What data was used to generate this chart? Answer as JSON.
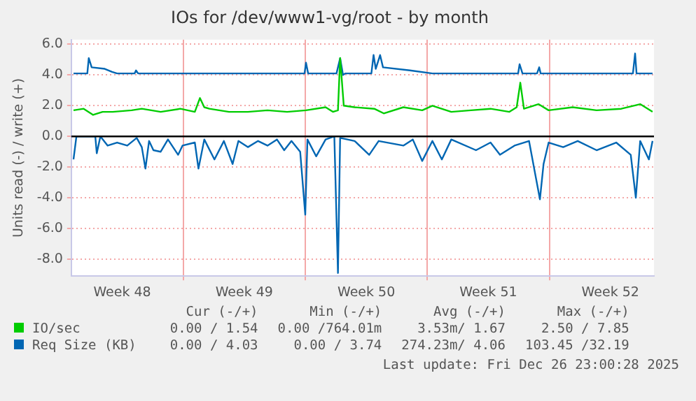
{
  "chart_data": {
    "type": "line",
    "title": "IOs for /dev/www1-vg/root - by month",
    "ylabel": "Units read (-) / write (+)",
    "xlim": [
      "2025-11-23T14:00",
      "2025-12-27T00:00"
    ],
    "xticks": [
      {
        "value": "2025-11-26T12:00",
        "label": "Week 48"
      },
      {
        "value": "2025-11-30",
        "label": null
      },
      {
        "value": "2025-12-03T12:00",
        "label": "Week 49"
      },
      {
        "value": "2025-12-07",
        "label": null
      },
      {
        "value": "2025-12-10T12:00",
        "label": "Week 50"
      },
      {
        "value": "2025-12-14",
        "label": null
      },
      {
        "value": "2025-12-17T12:00",
        "label": "Week 51"
      },
      {
        "value": "2025-12-21",
        "label": null
      },
      {
        "value": "2025-12-24T12:00",
        "label": "Week 52"
      }
    ],
    "ylim": [
      -9.1,
      6.3
    ],
    "yticks": [
      {
        "value": -8,
        "label": "-8.0"
      },
      {
        "value": -6,
        "label": "-6.0"
      },
      {
        "value": -4,
        "label": "-4.0"
      },
      {
        "value": -2,
        "label": "-2.0"
      },
      {
        "value": 0,
        "label": "0.0"
      },
      {
        "value": 2,
        "label": "2.0"
      },
      {
        "value": 4,
        "label": "4.0"
      },
      {
        "value": 6,
        "label": "6.0"
      }
    ],
    "grid": true,
    "legend": "bottom left",
    "marker": "none",
    "line_style": "solid",
    "ref_lines": [
      {
        "axis": "y",
        "value": 0,
        "label": null,
        "color": "#000000"
      }
    ],
    "series": [
      {
        "name": "IO/sec",
        "color": "#00cc00",
        "x": [
          "2025-11-23T17:00",
          "2025-11-24T07:00",
          "2025-11-24T20:00",
          "2025-11-25T09:00",
          "2025-11-25T23:00",
          "2025-11-27T01:00",
          "2025-11-27T15:00",
          "2025-11-28T17:00",
          "2025-11-29T20:00",
          "2025-11-30T16:00",
          "2025-11-30T23:00",
          "2025-12-01T05:00",
          "2025-12-01T12:00",
          "2025-12-02T15:00",
          "2025-12-03T17:00",
          "2025-12-04T20:00",
          "2025-12-05T23:00",
          "2025-12-07T01:00",
          "2025-12-08T04:00",
          "2025-12-08T14:00",
          "2025-12-08T21:00",
          "2025-12-09T00:00",
          "2025-12-09T05:00",
          "2025-12-09T20:00",
          "2025-12-10T23:00",
          "2025-12-11T12:00",
          "2025-12-12T15:00",
          "2025-12-13T17:00",
          "2025-12-14T07:00",
          "2025-12-15T09:00",
          "2025-12-16T12:00",
          "2025-12-17T15:00",
          "2025-12-18T17:00",
          "2025-12-19T03:00",
          "2025-12-19T08:00",
          "2025-12-19T13:00",
          "2025-12-20T09:00",
          "2025-12-20T23:00",
          "2025-12-22T08:00",
          "2025-12-23T17:00",
          "2025-12-25T03:00",
          "2025-12-26T05:00",
          "2025-12-26T22:00"
        ],
        "values": [
          1.7,
          1.8,
          1.4,
          1.6,
          1.6,
          1.7,
          1.8,
          1.6,
          1.8,
          1.6,
          2.5,
          1.9,
          1.8,
          1.6,
          1.6,
          1.7,
          1.6,
          1.7,
          1.9,
          1.6,
          1.7,
          5.1,
          2.0,
          1.9,
          1.8,
          1.5,
          1.9,
          1.7,
          2.0,
          1.6,
          1.7,
          1.8,
          1.6,
          1.9,
          3.5,
          1.8,
          2.1,
          1.7,
          1.9,
          1.7,
          1.8,
          2.1,
          1.6
        ]
      },
      {
        "name": "Req Size (KB)",
        "color": "#0066b3",
        "x": [
          "2025-11-23T17:00",
          "2025-11-24T12:00",
          "2025-11-24T14:00",
          "2025-11-24T18:00",
          "2025-11-25T12:00",
          "2025-11-25T22:00",
          "2025-11-26T05:00",
          "2025-11-27T05:00",
          "2025-11-27T07:00",
          "2025-11-27T10:00",
          "2025-12-06T23:00",
          "2025-12-07T01:00",
          "2025-12-07T04:00",
          "2025-12-08T19:00",
          "2025-12-09T00:00",
          "2025-12-09T04:00",
          "2025-12-09T07:00",
          "2025-12-10T19:00",
          "2025-12-10T22:00",
          "2025-12-11T01:00",
          "2025-12-11T07:00",
          "2025-12-11T11:00",
          "2025-12-13T00:00",
          "2025-12-14T07:00",
          "2025-12-19T05:00",
          "2025-12-19T07:00",
          "2025-12-19T11:00",
          "2025-12-20T07:00",
          "2025-12-20T10:00",
          "2025-12-20T12:00",
          "2025-12-25T19:00",
          "2025-12-25T22:00",
          "2025-12-26T00:00",
          "2025-12-26T22:00"
        ],
        "values": [
          4.1,
          4.1,
          5.1,
          4.5,
          4.4,
          4.2,
          4.1,
          4.1,
          4.3,
          4.1,
          4.1,
          4.8,
          4.1,
          4.1,
          5.1,
          4.0,
          4.1,
          4.1,
          5.3,
          4.4,
          5.3,
          4.5,
          4.3,
          4.1,
          4.1,
          4.7,
          4.1,
          4.1,
          4.5,
          4.1,
          4.1,
          5.4,
          4.1,
          4.1
        ]
      },
      {
        "color": "#0066b3",
        "x": [
          "2025-11-23T17:00",
          "2025-11-23T21:00",
          "2025-11-24T23:00",
          "2025-11-25T01:00",
          "2025-11-25T06:00",
          "2025-11-25T16:00",
          "2025-11-26T05:00",
          "2025-11-26T19:00",
          "2025-11-27T08:00",
          "2025-11-27T15:00",
          "2025-11-27T20:00",
          "2025-11-28T01:00",
          "2025-11-28T07:00",
          "2025-11-28T17:00",
          "2025-11-29T03:00",
          "2025-11-29T17:00",
          "2025-11-29T23:00",
          "2025-11-30T16:00",
          "2025-11-30T21:00",
          "2025-12-01T05:00",
          "2025-12-01T19:00",
          "2025-12-02T08:00",
          "2025-12-02T20:00",
          "2025-12-03T04:00",
          "2025-12-03T17:00",
          "2025-12-04T07:00",
          "2025-12-04T20:00",
          "2025-12-05T09:00",
          "2025-12-05T19:00",
          "2025-12-06T05:00",
          "2025-12-06T17:00",
          "2025-12-07T00:00",
          "2025-12-07T03:00",
          "2025-12-07T15:00",
          "2025-12-08T04:00",
          "2025-12-08T16:00",
          "2025-12-08T21:00",
          "2025-12-09T00:00",
          "2025-12-09T20:00",
          "2025-12-10T16:00",
          "2025-12-11T05:00",
          "2025-12-12T15:00",
          "2025-12-13T04:00",
          "2025-12-13T17:00",
          "2025-12-14T07:00",
          "2025-12-14T20:00",
          "2025-12-15T09:00",
          "2025-12-16T19:00",
          "2025-12-17T15:00",
          "2025-12-18T04:00",
          "2025-12-19T00:00",
          "2025-12-19T20:00",
          "2025-12-20T11:00",
          "2025-12-20T16:00",
          "2025-12-20T23:00",
          "2025-12-21T19:00",
          "2025-12-22T15:00",
          "2025-12-23T17:00",
          "2025-12-24T20:00",
          "2025-12-25T16:00",
          "2025-12-25T23:00",
          "2025-12-26T05:00",
          "2025-12-26T17:00",
          "2025-12-26T22:00"
        ],
        "values": [
          -1.5,
          0,
          0,
          -1.1,
          0,
          -0.6,
          -0.4,
          -0.6,
          -0.1,
          -0.7,
          -2.1,
          -0.3,
          -0.9,
          -1.0,
          -0.2,
          -1.2,
          -0.6,
          -0.4,
          -2.1,
          -0.2,
          -1.5,
          -0.3,
          -1.8,
          -0.3,
          -0.7,
          -0.3,
          -0.6,
          -0.2,
          -0.9,
          -0.3,
          -1.0,
          -5.1,
          -0.2,
          -1.3,
          -0.2,
          0,
          -8.9,
          -0.1,
          -0.3,
          -1.2,
          -0.3,
          -0.6,
          -0.2,
          -1.6,
          -0.3,
          -1.5,
          -0.2,
          -0.9,
          -0.4,
          -1.2,
          -0.6,
          -0.3,
          -4.1,
          -1.8,
          -0.4,
          -0.7,
          -0.3,
          -0.9,
          -0.4,
          -1.2,
          -4.0,
          -0.3,
          -1.5,
          -0.3
        ]
      }
    ],
    "annotations": [
      "Cur (-/+)",
      "Min (-/+)",
      "Avg (-/+)",
      "Max (-/+)",
      "0.00 / 1.54",
      "0.00 /764.01m",
      "3.53m/ 1.67",
      "2.50 / 7.85",
      "0.00 / 4.03",
      "0.00 / 3.74",
      "274.23m/ 4.06",
      "103.45 /32.19",
      "Last update: Fri Dec 26 23:00:28 2025"
    ]
  }
}
